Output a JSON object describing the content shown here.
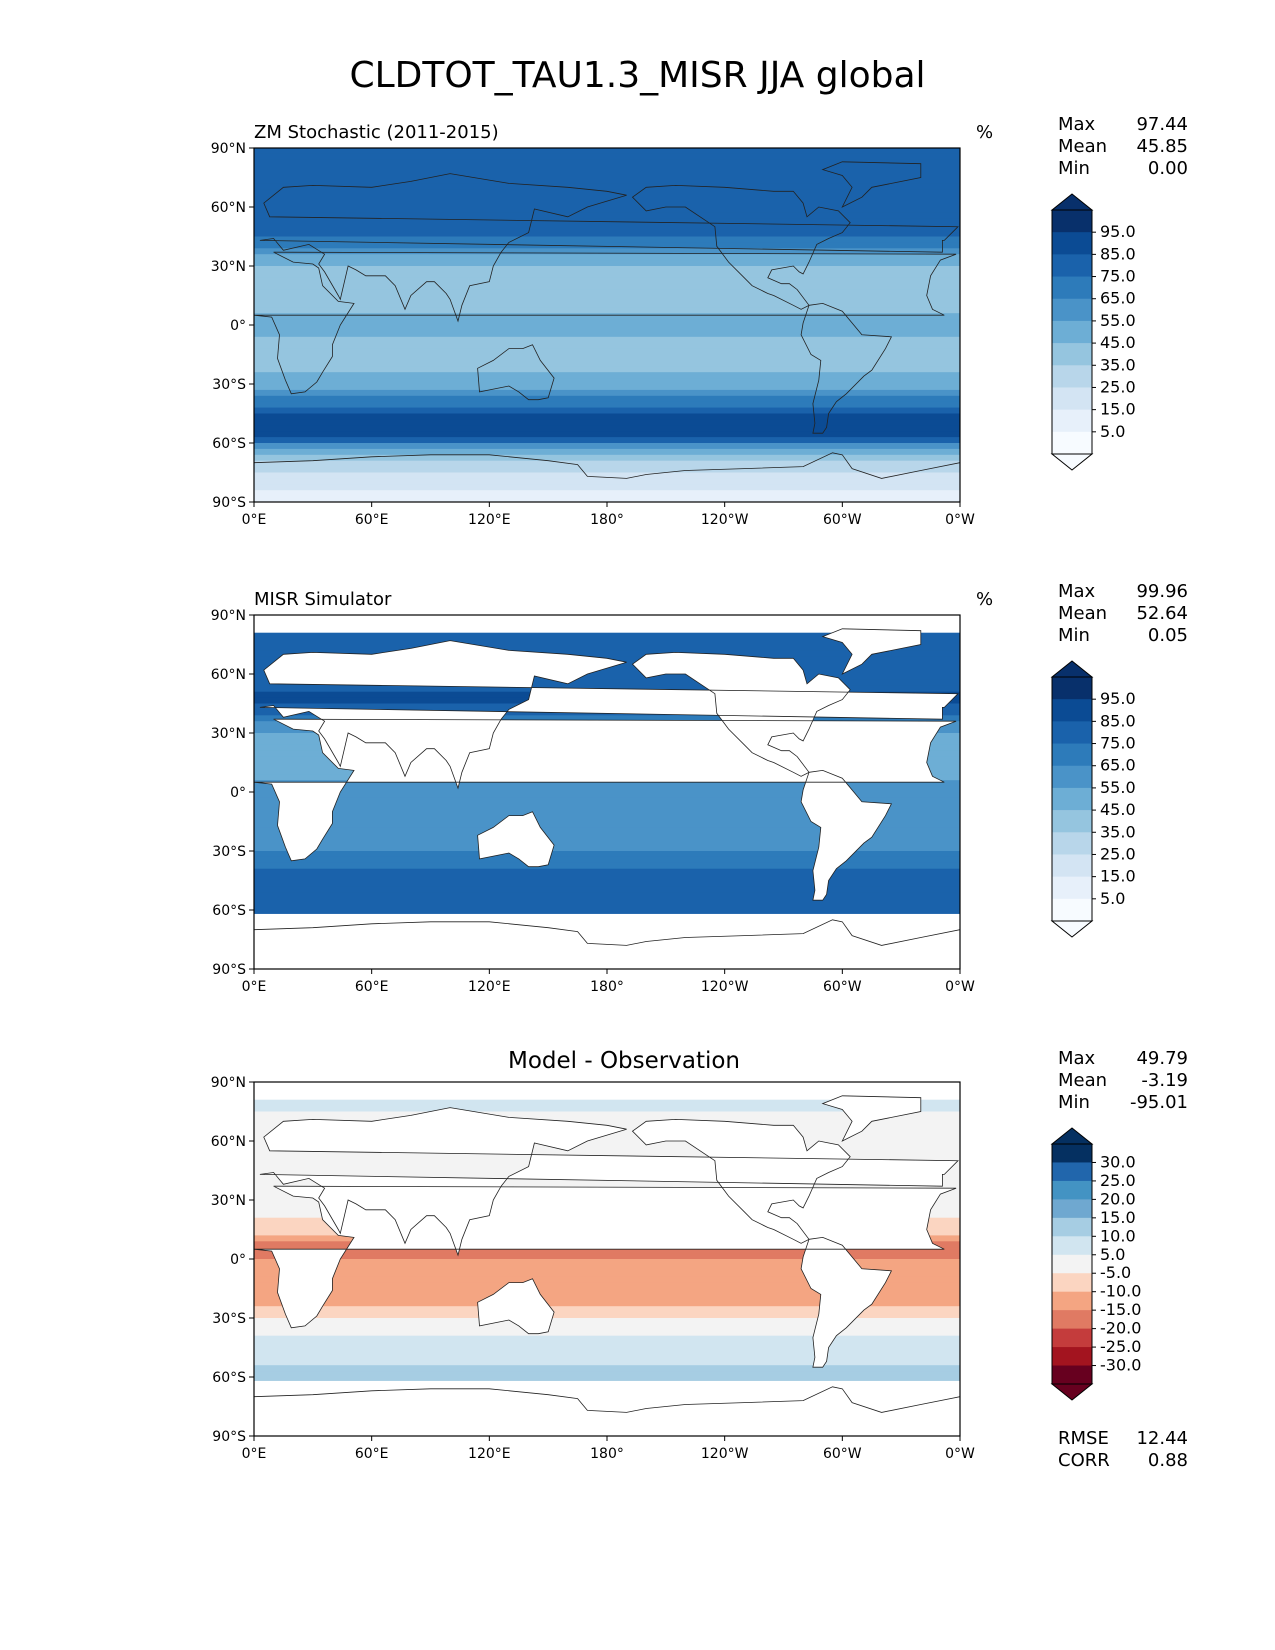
{
  "title": "CLDTOT_TAU1.3_MISR JJA global",
  "axis": {
    "lat_ticks": [
      "90°N",
      "60°N",
      "30°N",
      "0°",
      "30°S",
      "60°S",
      "90°S"
    ],
    "lon_ticks": [
      "0°E",
      "60°E",
      "120°E",
      "180°",
      "120°W",
      "60°W",
      "0°W"
    ]
  },
  "panels": [
    {
      "left_title": "ZM Stochastic (2011-2015)",
      "center_title": "",
      "right_title": "%",
      "stats": [
        {
          "label": "Max",
          "value": "97.44"
        },
        {
          "label": "Mean",
          "value": "45.85"
        },
        {
          "label": "Min",
          "value": "0.00"
        }
      ],
      "colorbar_labels": [
        "95.0",
        "85.0",
        "75.0",
        "65.0",
        "55.0",
        "45.0",
        "35.0",
        "25.0",
        "15.0",
        "5.0"
      ],
      "colorbar_colors": [
        "#08306b",
        "#0b4b94",
        "#1a62ab",
        "#2d7bba",
        "#4a93c8",
        "#6daed5",
        "#95c5df",
        "#b8d6ea",
        "#d3e4f3",
        "#e7f0fa",
        "#f7fbff"
      ]
    },
    {
      "left_title": "MISR Simulator",
      "center_title": "",
      "right_title": "%",
      "stats": [
        {
          "label": "Max",
          "value": "99.96"
        },
        {
          "label": "Mean",
          "value": "52.64"
        },
        {
          "label": "Min",
          "value": "0.05"
        }
      ],
      "colorbar_labels": [
        "95.0",
        "85.0",
        "75.0",
        "65.0",
        "55.0",
        "45.0",
        "35.0",
        "25.0",
        "15.0",
        "5.0"
      ],
      "colorbar_colors": [
        "#08306b",
        "#0b4b94",
        "#1a62ab",
        "#2d7bba",
        "#4a93c8",
        "#6daed5",
        "#95c5df",
        "#b8d6ea",
        "#d3e4f3",
        "#e7f0fa",
        "#f7fbff"
      ]
    },
    {
      "left_title": "",
      "center_title": "Model - Observation",
      "right_title": "",
      "stats": [
        {
          "label": "Max",
          "value": "49.79"
        },
        {
          "label": "Mean",
          "value": "-3.19"
        },
        {
          "label": "Min",
          "value": "-95.01"
        }
      ],
      "colorbar_labels": [
        "30.0",
        "25.0",
        "20.0",
        "15.0",
        "10.0",
        "5.0",
        "-5.0",
        "-10.0",
        "-15.0",
        "-20.0",
        "-25.0",
        "-30.0"
      ],
      "colorbar_colors": [
        "#053061",
        "#2166ac",
        "#4393c3",
        "#6fa8d0",
        "#a6cde3",
        "#d1e5f0",
        "#f3f3f3",
        "#fbd5c1",
        "#f4a582",
        "#e07a63",
        "#c43c3c",
        "#a3141f",
        "#67001f"
      ],
      "error_stats": [
        {
          "label": "RMSE",
          "value": "12.44"
        },
        {
          "label": "CORR",
          "value": "0.88"
        }
      ]
    }
  ],
  "chart_data": [
    {
      "type": "heatmap",
      "title": "ZM Stochastic (2011-2015)",
      "units": "%",
      "x_range": [
        0,
        360
      ],
      "y_range": [
        -90,
        90
      ],
      "colorbar_range": [
        0,
        100
      ],
      "zonal_profile": {
        "lat": [
          75,
          60,
          45,
          30,
          15,
          0,
          -15,
          -30,
          -45,
          -55,
          -70,
          -85
        ],
        "values": [
          80,
          75,
          70,
          40,
          35,
          45,
          35,
          45,
          80,
          85,
          25,
          10
        ]
      },
      "max": 97.44,
      "mean": 45.85,
      "min": 0.0
    },
    {
      "type": "heatmap",
      "title": "MISR Simulator",
      "units": "%",
      "x_range": [
        0,
        360
      ],
      "y_range": [
        -90,
        90
      ],
      "colorbar_range": [
        0,
        100
      ],
      "zonal_profile": {
        "lat": [
          75,
          60,
          45,
          30,
          15,
          0,
          -15,
          -30,
          -45,
          -55
        ],
        "values": [
          80,
          78,
          82,
          50,
          45,
          55,
          50,
          60,
          75,
          80
        ]
      },
      "max": 99.96,
      "mean": 52.64,
      "min": 0.05
    },
    {
      "type": "heatmap",
      "title": "Model - Observation",
      "x_range": [
        0,
        360
      ],
      "y_range": [
        -90,
        90
      ],
      "colorbar_range": [
        -35,
        35
      ],
      "zonal_profile": {
        "lat": [
          75,
          60,
          45,
          30,
          15,
          5,
          -5,
          -15,
          -25,
          -40,
          -55
        ],
        "values": [
          5,
          0,
          -5,
          -2,
          -8,
          -20,
          -12,
          -15,
          -10,
          5,
          10
        ]
      },
      "max": 49.79,
      "mean": -3.19,
      "min": -95.01,
      "rmse": 12.44,
      "corr": 0.88
    }
  ]
}
